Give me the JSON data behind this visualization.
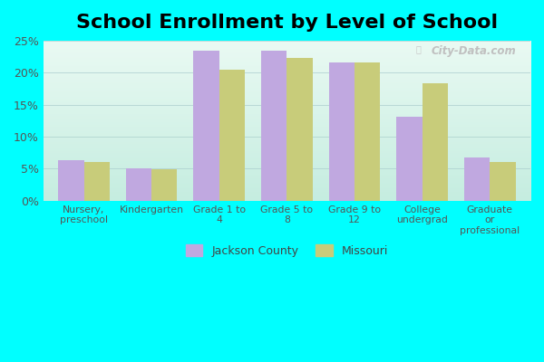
{
  "title": "School Enrollment by Level of School",
  "categories": [
    "Nursery,\npreschool",
    "Kindergarten",
    "Grade 1 to\n4",
    "Grade 5 to\n8",
    "Grade 9 to\n12",
    "College\nundergrad",
    "Graduate\nor\nprofessional"
  ],
  "jackson_county": [
    6.4,
    5.0,
    23.5,
    23.5,
    21.6,
    13.1,
    6.8
  ],
  "missouri": [
    6.0,
    4.9,
    20.5,
    22.3,
    21.6,
    18.4,
    6.1
  ],
  "jackson_color": "#c0a8e0",
  "missouri_color": "#c8cc7a",
  "figure_bg_color": "#00ffff",
  "plot_bg_top": "#c8ede0",
  "plot_bg_bottom": "#eefaf5",
  "grid_color": "#aacccc",
  "ylim": [
    0,
    25
  ],
  "yticks": [
    0,
    5,
    10,
    15,
    20,
    25
  ],
  "ytick_labels": [
    "0%",
    "5%",
    "10%",
    "15%",
    "20%",
    "25%"
  ],
  "legend_label_1": "Jackson County",
  "legend_label_2": "Missouri",
  "title_fontsize": 16,
  "watermark": "City-Data.com"
}
